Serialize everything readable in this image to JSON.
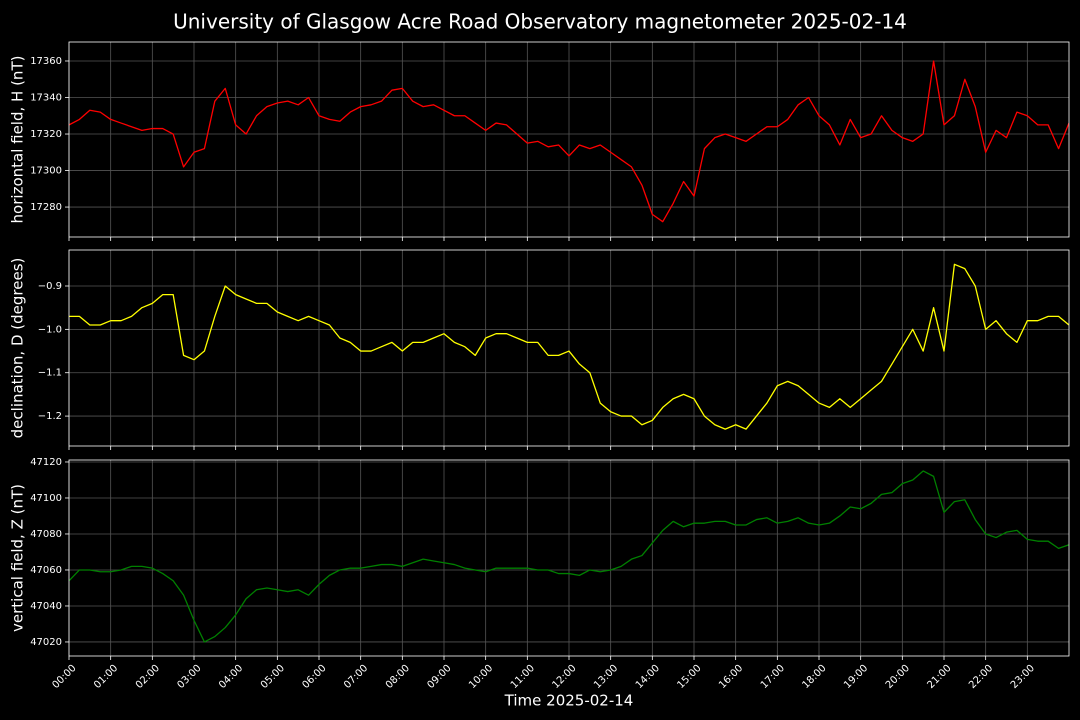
{
  "title": "University of Glasgow Acre Road Observatory magnetometer 2025-02-14",
  "xlabel": "Time 2025-02-14",
  "x": [
    0,
    0.25,
    0.5,
    0.75,
    1,
    1.25,
    1.5,
    1.75,
    2,
    2.25,
    2.5,
    2.75,
    3,
    3.25,
    3.5,
    3.75,
    4,
    4.25,
    4.5,
    4.75,
    5,
    5.25,
    5.5,
    5.75,
    6,
    6.25,
    6.5,
    6.75,
    7,
    7.25,
    7.5,
    7.75,
    8,
    8.25,
    8.5,
    8.75,
    9,
    9.25,
    9.5,
    9.75,
    10,
    10.25,
    10.5,
    10.75,
    11,
    11.25,
    11.5,
    11.75,
    12,
    12.25,
    12.5,
    12.75,
    13,
    13.25,
    13.5,
    13.75,
    14,
    14.25,
    14.5,
    14.75,
    15,
    15.25,
    15.5,
    15.75,
    16,
    16.25,
    16.5,
    16.75,
    17,
    17.25,
    17.5,
    17.75,
    18,
    18.25,
    18.5,
    18.75,
    19,
    19.25,
    19.5,
    19.75,
    20,
    20.25,
    20.5,
    20.75,
    21,
    21.25,
    21.5,
    21.75,
    22,
    22.25,
    22.5,
    22.75,
    23,
    23.25,
    23.5,
    23.75,
    24
  ],
  "xlim": [
    0,
    24
  ],
  "xticks": [
    {
      "value": 0,
      "label": "00:00"
    },
    {
      "value": 1,
      "label": "01:00"
    },
    {
      "value": 2,
      "label": "02:00"
    },
    {
      "value": 3,
      "label": "03:00"
    },
    {
      "value": 4,
      "label": "04:00"
    },
    {
      "value": 5,
      "label": "05:00"
    },
    {
      "value": 6,
      "label": "06:00"
    },
    {
      "value": 7,
      "label": "07:00"
    },
    {
      "value": 8,
      "label": "08:00"
    },
    {
      "value": 9,
      "label": "09:00"
    },
    {
      "value": 10,
      "label": "10:00"
    },
    {
      "value": 11,
      "label": "11:00"
    },
    {
      "value": 12,
      "label": "12:00"
    },
    {
      "value": 13,
      "label": "13:00"
    },
    {
      "value": 14,
      "label": "14:00"
    },
    {
      "value": 15,
      "label": "15:00"
    },
    {
      "value": 16,
      "label": "16:00"
    },
    {
      "value": 17,
      "label": "17:00"
    },
    {
      "value": 18,
      "label": "18:00"
    },
    {
      "value": 19,
      "label": "19:00"
    },
    {
      "value": 20,
      "label": "20:00"
    },
    {
      "value": 21,
      "label": "21:00"
    },
    {
      "value": 22,
      "label": "22:00"
    },
    {
      "value": 23,
      "label": "23:00"
    }
  ],
  "grid": true,
  "chart_data": [
    {
      "type": "line",
      "ylabel": "horizontal field, H (nT)",
      "color": "#ff0000",
      "ylim": [
        17263.6,
        17370.4
      ],
      "yticks": [
        17280,
        17300,
        17320,
        17340,
        17360
      ],
      "values": [
        17325,
        17328,
        17333,
        17332,
        17328,
        17326,
        17324,
        17322,
        17323,
        17323,
        17320,
        17302,
        17310,
        17312,
        17338,
        17345,
        17325,
        17320,
        17330,
        17335,
        17337,
        17338,
        17336,
        17340,
        17330,
        17328,
        17327,
        17332,
        17335,
        17336,
        17338,
        17344,
        17345,
        17338,
        17335,
        17336,
        17333,
        17330,
        17330,
        17326,
        17322,
        17326,
        17325,
        17320,
        17315,
        17316,
        17313,
        17314,
        17308,
        17314,
        17312,
        17314,
        17310,
        17306,
        17302,
        17292,
        17276,
        17272,
        17282,
        17294,
        17286,
        17312,
        17318,
        17320,
        17318,
        17316,
        17320,
        17324,
        17324,
        17328,
        17336,
        17340,
        17330,
        17325,
        17314,
        17328,
        17318,
        17320,
        17330,
        17322,
        17318,
        17316,
        17320,
        17360,
        17325,
        17330,
        17350,
        17335,
        17310,
        17322,
        17318,
        17332,
        17330,
        17325,
        17325,
        17312,
        17326
      ]
    },
    {
      "type": "line",
      "ylabel": "declination, D (degrees)",
      "color": "#ffff00",
      "ylim": [
        -1.269,
        -0.817
      ],
      "yticks": [
        {
          "value": -1.2,
          "label": "−1.2"
        },
        {
          "value": -1.1,
          "label": "−1.1"
        },
        {
          "value": -1.0,
          "label": "−1.0"
        },
        {
          "value": -0.9,
          "label": "−0.9"
        }
      ],
      "values": [
        -0.97,
        -0.97,
        -0.99,
        -0.99,
        -0.98,
        -0.98,
        -0.97,
        -0.95,
        -0.94,
        -0.92,
        -0.92,
        -1.06,
        -1.07,
        -1.05,
        -0.97,
        -0.9,
        -0.92,
        -0.93,
        -0.94,
        -0.94,
        -0.96,
        -0.97,
        -0.98,
        -0.97,
        -0.98,
        -0.99,
        -1.02,
        -1.03,
        -1.05,
        -1.05,
        -1.04,
        -1.03,
        -1.05,
        -1.03,
        -1.03,
        -1.02,
        -1.01,
        -1.03,
        -1.04,
        -1.06,
        -1.02,
        -1.01,
        -1.01,
        -1.02,
        -1.03,
        -1.03,
        -1.06,
        -1.06,
        -1.05,
        -1.08,
        -1.1,
        -1.17,
        -1.19,
        -1.2,
        -1.2,
        -1.22,
        -1.21,
        -1.18,
        -1.16,
        -1.15,
        -1.16,
        -1.2,
        -1.22,
        -1.23,
        -1.22,
        -1.23,
        -1.2,
        -1.17,
        -1.13,
        -1.12,
        -1.13,
        -1.15,
        -1.17,
        -1.18,
        -1.16,
        -1.18,
        -1.16,
        -1.14,
        -1.12,
        -1.08,
        -1.04,
        -1.0,
        -1.05,
        -0.95,
        -1.05,
        -0.85,
        -0.86,
        -0.9,
        -1.0,
        -0.98,
        -1.01,
        -1.03,
        -0.98,
        -0.98,
        -0.97,
        -0.97,
        -0.99
      ]
    },
    {
      "type": "line",
      "ylabel": "vertical field, Z (nT)",
      "color": "#008000",
      "ylim": [
        47012.2,
        47121.1
      ],
      "yticks": [
        47020,
        47040,
        47060,
        47080,
        47100,
        47120
      ],
      "values": [
        47054,
        47060,
        47060,
        47059,
        47059,
        47060,
        47062,
        47062,
        47061,
        47058,
        47054,
        47046,
        47032,
        47020,
        47023,
        47028,
        47035,
        47044,
        47049,
        47050,
        47049,
        47048,
        47049,
        47046,
        47052,
        47057,
        47060,
        47061,
        47061,
        47062,
        47063,
        47063,
        47062,
        47064,
        47066,
        47065,
        47064,
        47063,
        47061,
        47060,
        47059,
        47061,
        47061,
        47061,
        47061,
        47060,
        47060,
        47058,
        47058,
        47057,
        47060,
        47059,
        47060,
        47062,
        47066,
        47068,
        47075,
        47082,
        47087,
        47084,
        47086,
        47086,
        47087,
        47087,
        47085,
        47085,
        47088,
        47089,
        47086,
        47087,
        47089,
        47086,
        47085,
        47086,
        47090,
        47095,
        47094,
        47097,
        47102,
        47103,
        47108,
        47110,
        47115,
        47112,
        47092,
        47098,
        47099,
        47088,
        47080,
        47078,
        47081,
        47082,
        47077,
        47076,
        47076,
        47072,
        47074
      ]
    }
  ]
}
